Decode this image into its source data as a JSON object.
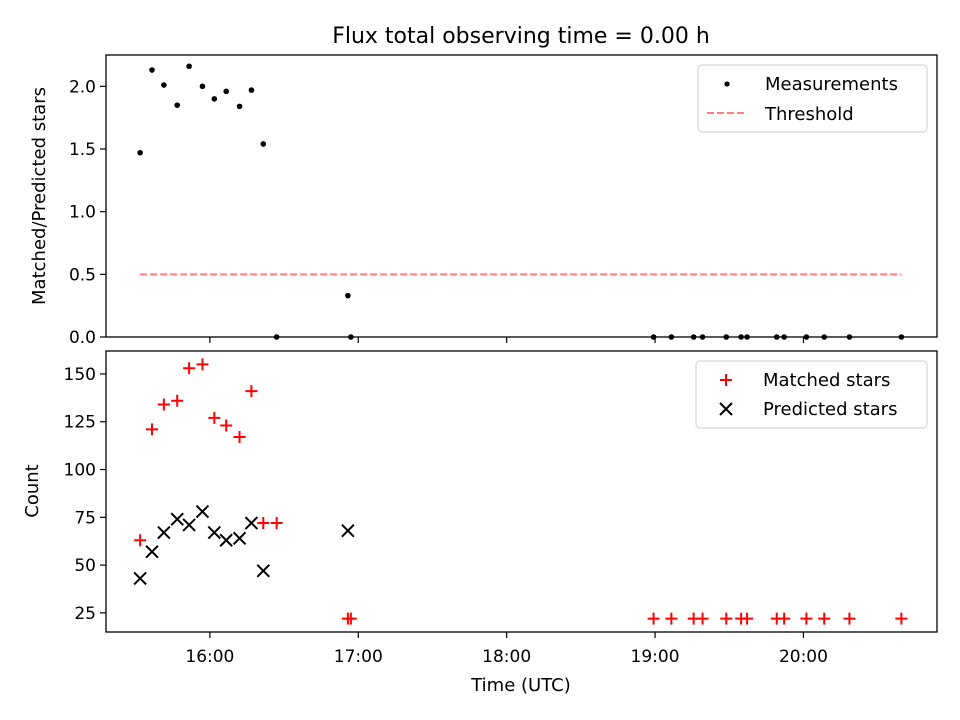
{
  "chart_data": [
    {
      "type": "scatter",
      "title": "Flux total observing time = 0.00 h",
      "xlabel": "",
      "ylabel": "Matched/Predicted stars",
      "xlim": [
        15.3,
        20.9
      ],
      "ylim": [
        0,
        2.25
      ],
      "yticks": [
        0.0,
        0.5,
        1.0,
        1.5,
        2.0
      ],
      "ytick_labels": [
        "0.0",
        "0.5",
        "1.0",
        "1.5",
        "2.0"
      ],
      "legend": {
        "position": "top-right",
        "entries": [
          "Measurements",
          "Threshold"
        ]
      },
      "series": [
        {
          "name": "Measurements",
          "marker": "dot",
          "color": "#000000",
          "x": [
            15.53,
            15.61,
            15.69,
            15.78,
            15.86,
            15.95,
            16.03,
            16.11,
            16.2,
            16.28,
            16.36,
            16.45,
            16.93,
            16.95,
            18.99,
            19.11,
            19.26,
            19.32,
            19.48,
            19.58,
            19.62,
            19.82,
            19.87,
            20.02,
            20.14,
            20.31,
            20.66
          ],
          "y": [
            1.47,
            2.13,
            2.01,
            1.85,
            2.16,
            2.0,
            1.9,
            1.96,
            1.84,
            1.97,
            1.54,
            0.0,
            0.33,
            0.0,
            0.0,
            0.0,
            0.0,
            0.0,
            0.0,
            0.0,
            0.0,
            0.0,
            0.0,
            0.0,
            0.0,
            0.0,
            0.0
          ]
        },
        {
          "name": "Threshold",
          "style": "dashed-line",
          "color": "#ff7f7f",
          "x": [
            15.53,
            20.66
          ],
          "y": [
            0.5,
            0.5
          ]
        }
      ]
    },
    {
      "type": "scatter",
      "title": "",
      "xlabel": "Time (UTC)",
      "ylabel": "Count",
      "xlim": [
        15.3,
        20.9
      ],
      "ylim": [
        15,
        162
      ],
      "yticks": [
        25,
        50,
        75,
        100,
        125,
        150
      ],
      "ytick_labels": [
        "25",
        "50",
        "75",
        "100",
        "125",
        "150"
      ],
      "xticks": [
        16,
        17,
        18,
        19,
        20
      ],
      "xtick_labels": [
        "16:00",
        "17:00",
        "18:00",
        "19:00",
        "20:00"
      ],
      "legend": {
        "position": "top-right",
        "entries": [
          "Matched stars",
          "Predicted stars"
        ]
      },
      "series": [
        {
          "name": "Matched stars",
          "marker": "plus",
          "color": "#ff0000",
          "x": [
            15.53,
            15.61,
            15.69,
            15.78,
            15.86,
            15.95,
            16.03,
            16.11,
            16.2,
            16.28,
            16.36,
            16.45,
            16.93,
            16.95,
            18.99,
            19.11,
            19.26,
            19.32,
            19.48,
            19.58,
            19.62,
            19.82,
            19.87,
            20.02,
            20.14,
            20.31,
            20.66
          ],
          "y": [
            63,
            121,
            134,
            136,
            153,
            155,
            127,
            123,
            117,
            141,
            72,
            72,
            22,
            22,
            22,
            22,
            22,
            22,
            22,
            22,
            22,
            22,
            22,
            22,
            22,
            22,
            22
          ]
        },
        {
          "name": "Predicted stars",
          "marker": "x",
          "color": "#000000",
          "x": [
            15.53,
            15.61,
            15.69,
            15.78,
            15.86,
            15.95,
            16.03,
            16.11,
            16.2,
            16.28,
            16.36,
            16.93
          ],
          "y": [
            43,
            57,
            67,
            74,
            71,
            78,
            67,
            63,
            64,
            72,
            47,
            68
          ]
        }
      ]
    }
  ]
}
